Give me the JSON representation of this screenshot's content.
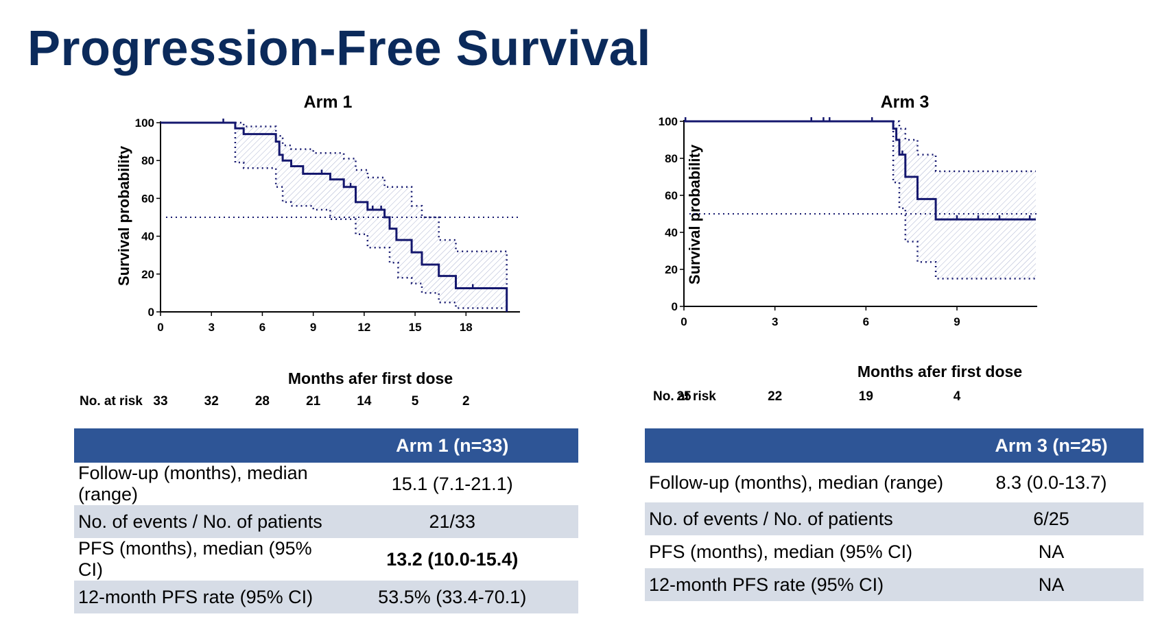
{
  "title": "Progression-Free Survival",
  "colors": {
    "title": "#0b2a5b",
    "curve": "#14176e",
    "table_header": "#2e5596",
    "shade": "#d6dce6"
  },
  "chart_data": [
    {
      "type": "line",
      "title": "Arm 1",
      "xlabel": "Months afer first dose",
      "ylabel": "Survival probability",
      "xlim": [
        0,
        21.1
      ],
      "ylim": [
        0,
        100
      ],
      "x_ticks": [
        0,
        3,
        6,
        9,
        12,
        15,
        18
      ],
      "y_ticks": [
        0,
        20,
        40,
        60,
        80,
        100
      ],
      "reference_line": 50,
      "series": [
        {
          "role": "estimate",
          "step": [
            [
              0,
              100
            ],
            [
              4.4,
              100
            ],
            [
              4.4,
              97
            ],
            [
              4.9,
              97
            ],
            [
              4.9,
              94
            ],
            [
              6.8,
              94
            ],
            [
              6.8,
              90
            ],
            [
              7.0,
              90
            ],
            [
              7.0,
              83
            ],
            [
              7.2,
              83
            ],
            [
              7.2,
              80
            ],
            [
              7.7,
              80
            ],
            [
              7.7,
              77
            ],
            [
              8.4,
              77
            ],
            [
              8.4,
              73
            ],
            [
              10.0,
              73
            ],
            [
              10.0,
              70
            ],
            [
              10.8,
              70
            ],
            [
              10.8,
              66
            ],
            [
              11.5,
              66
            ],
            [
              11.5,
              58
            ],
            [
              12.2,
              58
            ],
            [
              12.2,
              54
            ],
            [
              13.2,
              54
            ],
            [
              13.2,
              50
            ],
            [
              13.5,
              50
            ],
            [
              13.5,
              44
            ],
            [
              13.9,
              44
            ],
            [
              13.9,
              38
            ],
            [
              14.8,
              38
            ],
            [
              14.8,
              31.5
            ],
            [
              15.4,
              31.5
            ],
            [
              15.4,
              25
            ],
            [
              16.4,
              25
            ],
            [
              16.4,
              19
            ],
            [
              17.4,
              19
            ],
            [
              17.4,
              12.5
            ],
            [
              20.4,
              12.5
            ],
            [
              20.4,
              0
            ]
          ]
        },
        {
          "role": "upper_ci",
          "step": [
            [
              4.4,
              100
            ],
            [
              4.9,
              100
            ],
            [
              4.9,
              98
            ],
            [
              6.8,
              98
            ],
            [
              6.8,
              93
            ],
            [
              7.2,
              93
            ],
            [
              7.2,
              88
            ],
            [
              7.7,
              88
            ],
            [
              7.7,
              86
            ],
            [
              9.0,
              86
            ],
            [
              9.0,
              84
            ],
            [
              10.8,
              84
            ],
            [
              10.8,
              81
            ],
            [
              11.5,
              81
            ],
            [
              11.5,
              75
            ],
            [
              12.2,
              75
            ],
            [
              12.2,
              71
            ],
            [
              13.2,
              71
            ],
            [
              13.2,
              66
            ],
            [
              14.8,
              66
            ],
            [
              14.8,
              56
            ],
            [
              15.4,
              56
            ],
            [
              15.4,
              50
            ],
            [
              16.4,
              50
            ],
            [
              16.4,
              38
            ],
            [
              17.4,
              38
            ],
            [
              17.4,
              32
            ],
            [
              20.4,
              32
            ],
            [
              20.4,
              0
            ]
          ]
        },
        {
          "role": "lower_ci",
          "step": [
            [
              4.4,
              100
            ],
            [
              4.4,
              79
            ],
            [
              4.9,
              79
            ],
            [
              4.9,
              76
            ],
            [
              6.8,
              76
            ],
            [
              6.8,
              66
            ],
            [
              7.2,
              66
            ],
            [
              7.2,
              58
            ],
            [
              7.7,
              58
            ],
            [
              7.7,
              56
            ],
            [
              9.0,
              56
            ],
            [
              9.0,
              54
            ],
            [
              10.0,
              54
            ],
            [
              10.0,
              49
            ],
            [
              11.5,
              49
            ],
            [
              11.5,
              41
            ],
            [
              12.2,
              41
            ],
            [
              12.2,
              34
            ],
            [
              13.5,
              34
            ],
            [
              13.5,
              26
            ],
            [
              14.0,
              26
            ],
            [
              14.0,
              18
            ],
            [
              14.8,
              18
            ],
            [
              14.8,
              15
            ],
            [
              15.4,
              15
            ],
            [
              15.4,
              10
            ],
            [
              16.4,
              10
            ],
            [
              16.4,
              5
            ],
            [
              17.4,
              5
            ],
            [
              17.4,
              2
            ],
            [
              20.4,
              2
            ]
          ]
        }
      ],
      "censor_marks": [
        [
          3.7,
          100
        ],
        [
          7.0,
          83
        ],
        [
          9.5,
          73
        ],
        [
          11.2,
          66
        ],
        [
          12.5,
          54
        ],
        [
          13.0,
          54
        ],
        [
          18.4,
          12.5
        ]
      ],
      "at_risk": {
        "label": "No. at risk",
        "times": [
          0,
          3,
          6,
          9,
          12,
          15,
          18
        ],
        "counts": [
          "33",
          "32",
          "28",
          "21",
          "14",
          "5",
          "2"
        ]
      }
    },
    {
      "type": "line",
      "title": "Arm 3",
      "xlabel": "Months afer first dose",
      "ylabel": "Survival probability",
      "xlim": [
        0,
        11.6
      ],
      "ylim": [
        0,
        100
      ],
      "x_ticks": [
        0,
        3,
        6,
        9
      ],
      "y_ticks": [
        0,
        20,
        40,
        60,
        80,
        100
      ],
      "reference_line": 50,
      "series": [
        {
          "role": "estimate",
          "step": [
            [
              0,
              100
            ],
            [
              6.9,
              100
            ],
            [
              6.9,
              96
            ],
            [
              7.0,
              96
            ],
            [
              7.0,
              90
            ],
            [
              7.1,
              90
            ],
            [
              7.1,
              82
            ],
            [
              7.3,
              82
            ],
            [
              7.3,
              70
            ],
            [
              7.7,
              70
            ],
            [
              7.7,
              58
            ],
            [
              8.3,
              58
            ],
            [
              8.3,
              47
            ],
            [
              11.6,
              47
            ]
          ]
        },
        {
          "role": "upper_ci",
          "step": [
            [
              6.9,
              100
            ],
            [
              7.1,
              100
            ],
            [
              7.1,
              96
            ],
            [
              7.3,
              96
            ],
            [
              7.3,
              90
            ],
            [
              7.7,
              90
            ],
            [
              7.7,
              82
            ],
            [
              8.3,
              82
            ],
            [
              8.3,
              73
            ],
            [
              11.6,
              73
            ]
          ]
        },
        {
          "role": "lower_ci",
          "step": [
            [
              6.9,
              100
            ],
            [
              6.9,
              67
            ],
            [
              7.1,
              67
            ],
            [
              7.1,
              53
            ],
            [
              7.3,
              53
            ],
            [
              7.3,
              35
            ],
            [
              7.7,
              35
            ],
            [
              7.7,
              24
            ],
            [
              8.3,
              24
            ],
            [
              8.3,
              15
            ],
            [
              11.6,
              15
            ]
          ]
        }
      ],
      "censor_marks": [
        [
          0.05,
          100
        ],
        [
          4.2,
          100
        ],
        [
          4.6,
          100
        ],
        [
          4.8,
          100
        ],
        [
          6.2,
          100
        ],
        [
          7.2,
          82
        ],
        [
          9.0,
          47
        ],
        [
          9.7,
          47
        ],
        [
          10.4,
          47
        ],
        [
          11.4,
          47
        ]
      ],
      "at_risk": {
        "label": "No. at risk",
        "times": [
          0,
          3,
          6,
          9
        ],
        "counts": [
          "25",
          "22",
          "19",
          "4"
        ]
      }
    }
  ],
  "table_arm1": {
    "header": "Arm 1 (n=33)",
    "rows": [
      {
        "label": "Follow-up (months), median (range)",
        "value": "15.1 (7.1-21.1)"
      },
      {
        "label": "No. of events / No. of patients",
        "value": "21/33"
      },
      {
        "label": "PFS (months), median (95% CI)",
        "value": "13.2 (10.0-15.4)"
      },
      {
        "label": "12-month PFS rate (95% CI)",
        "value": "53.5% (33.4-70.1)"
      }
    ]
  },
  "table_arm3": {
    "header": "Arm 3 (n=25)",
    "rows": [
      {
        "label": "Follow-up (months), median (range)",
        "value": "8.3 (0.0-13.7)"
      },
      {
        "label": "No. of events / No. of patients",
        "value": "6/25"
      },
      {
        "label": "PFS (months), median (95% CI)",
        "value": "NA"
      },
      {
        "label": "12-month PFS rate (95% CI)",
        "value": "NA"
      }
    ]
  }
}
